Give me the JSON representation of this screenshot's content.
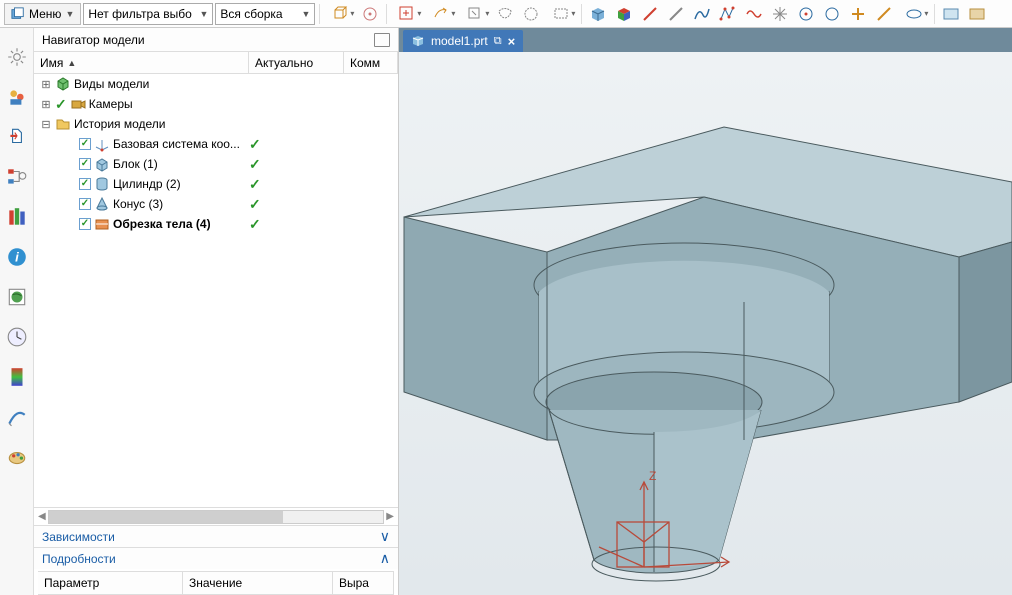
{
  "toolbar": {
    "menu_label": "Меню",
    "filter_dropdown": "Нет фильтра выбо",
    "assembly_dropdown": "Вся сборка"
  },
  "navigator": {
    "title": "Навигатор модели",
    "columns": {
      "name": "Имя",
      "actual": "Актуально",
      "comment": "Комм"
    },
    "tree": [
      {
        "indent": 0,
        "expander": "+",
        "check": false,
        "icon": "model-views",
        "label": "Виды модели",
        "actual": ""
      },
      {
        "indent": 0,
        "expander": "+",
        "check": false,
        "icon": "cameras",
        "label": "Камеры",
        "actual": "",
        "pre_check": true
      },
      {
        "indent": 0,
        "expander": "-",
        "check": false,
        "icon": "history",
        "label": "История модели",
        "actual": ""
      },
      {
        "indent": 1,
        "expander": "",
        "check": true,
        "icon": "csys",
        "label": "Базовая система коо...",
        "actual": "✓"
      },
      {
        "indent": 1,
        "expander": "",
        "check": true,
        "icon": "block",
        "label": "Блок (1)",
        "actual": "✓"
      },
      {
        "indent": 1,
        "expander": "",
        "check": true,
        "icon": "cylinder",
        "label": "Цилиндр (2)",
        "actual": "✓"
      },
      {
        "indent": 1,
        "expander": "",
        "check": true,
        "icon": "cone",
        "label": "Конус (3)",
        "actual": "✓"
      },
      {
        "indent": 1,
        "expander": "",
        "check": true,
        "icon": "trim",
        "label": "Обрезка тела (4)",
        "actual": "✓",
        "bold": true
      }
    ],
    "sections": {
      "deps": {
        "label": "Зависимости",
        "expanded": false
      },
      "details": {
        "label": "Подробности",
        "expanded": true
      }
    },
    "detail_cols": {
      "param": "Параметр",
      "value": "Значение",
      "expr": "Выра"
    }
  },
  "tab": {
    "filename": "model1.prt"
  },
  "viewport": {
    "background_top": "#eef2f4",
    "background_bottom": "#e2e8ec",
    "solid_color": "#a4bdc6",
    "solid_color_light": "#bdd0d7",
    "solid_color_dark": "#7c96a0",
    "edge_color": "#4a5a5e",
    "axis_color": "#b84a3a",
    "axis_label_z": "Z"
  },
  "colors": {
    "tab_active_bg": "#4178b8",
    "tabbar_bg": "#6f8a9b",
    "link": "#1a5da6",
    "check_green": "#2a952a"
  }
}
